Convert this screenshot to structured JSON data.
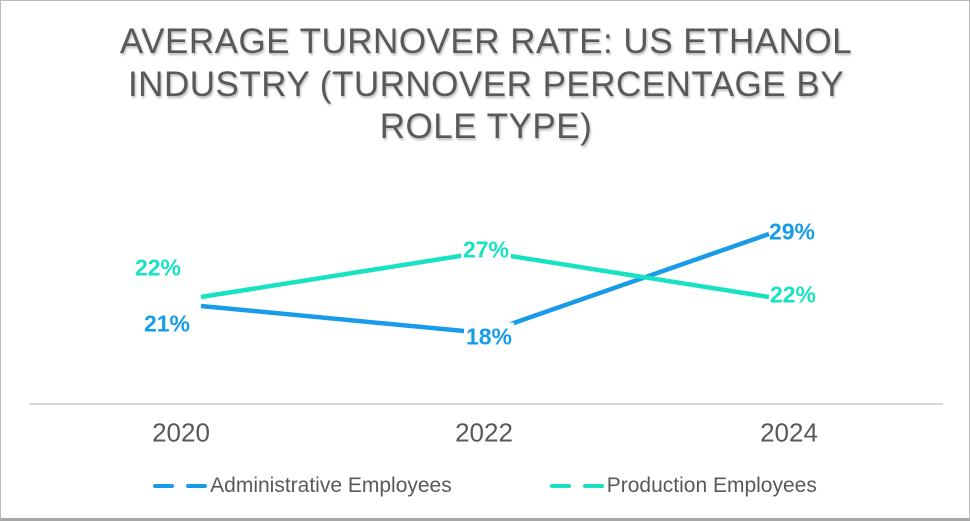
{
  "colors": {
    "text": "#595959",
    "axis_line": "#D9D9D9",
    "administrative_line": "#189CE8",
    "production_line": "#17E2C2"
  },
  "chart_data": {
    "type": "line",
    "title": "AVERAGE TURNOVER RATE: US ETHANOL INDUSTRY (TURNOVER PERCENTAGE BY ROLE TYPE)",
    "categories": [
      "2020",
      "2022",
      "2024"
    ],
    "series": [
      {
        "name": "Administrative Employees",
        "values": [
          21,
          18,
          29
        ],
        "data_labels": [
          "21%",
          "18%",
          "29%"
        ],
        "color": "#189CE8"
      },
      {
        "name": "Production Employees",
        "values": [
          22,
          27,
          22
        ],
        "data_labels": [
          "22%",
          "27%",
          "22%"
        ],
        "color": "#17E2C2"
      }
    ],
    "value_suffix": "%",
    "xlabel": "",
    "ylabel": "",
    "y_axis_visible": false,
    "x_axis_line": true,
    "grid": false,
    "legend_position": "bottom",
    "legend_marker": "dashed-line"
  }
}
